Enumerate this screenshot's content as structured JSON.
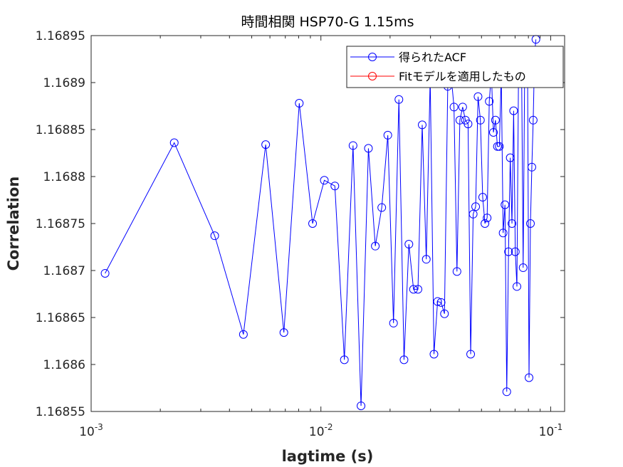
{
  "chart_data": {
    "type": "line",
    "title": "時間相関 HSP70-G 1.15ms",
    "xlabel": "lagtime (s)",
    "ylabel": "Correlation",
    "xscale": "log",
    "xlim": [
      0.001,
      0.115
    ],
    "ylim": [
      1.16855,
      1.16895
    ],
    "xticks": [
      0.001,
      0.01,
      0.1
    ],
    "xtick_labels": [
      {
        "base": "10",
        "exp": "-3"
      },
      {
        "base": "10",
        "exp": "-2"
      },
      {
        "base": "10",
        "exp": "-1"
      }
    ],
    "yticks": [
      1.16855,
      1.1686,
      1.16865,
      1.1687,
      1.16875,
      1.1688,
      1.16885,
      1.1689,
      1.16895
    ],
    "ytick_labels": [
      "1.16855",
      "1.1686",
      "1.16865",
      "1.1687",
      "1.16875",
      "1.1688",
      "1.16885",
      "1.1689",
      "1.16895"
    ],
    "grid": false,
    "legend_position": "top-right",
    "series": [
      {
        "name": "得られたACF",
        "color": "#0000ff",
        "marker": "circle",
        "x": [
          0.00115,
          0.0023,
          0.00345,
          0.0046,
          0.00575,
          0.0069,
          0.00805,
          0.0092,
          0.01035,
          0.0115,
          0.01265,
          0.0138,
          0.01495,
          0.0161,
          0.01725,
          0.0184,
          0.01955,
          0.0207,
          0.02185,
          0.023,
          0.02415,
          0.0253,
          0.02645,
          0.0276,
          0.02875,
          0.0299,
          0.03105,
          0.0322,
          0.03335,
          0.0345,
          0.03565,
          0.0368,
          0.03795,
          0.0391,
          0.04025,
          0.0414,
          0.04255,
          0.0437,
          0.04485,
          0.046,
          0.04715,
          0.0483,
          0.04945,
          0.0506,
          0.05175,
          0.0529,
          0.05405,
          0.0552,
          0.05635,
          0.0575,
          0.05865,
          0.0598,
          0.06095,
          0.0621,
          0.06325,
          0.0644,
          0.06555,
          0.0667,
          0.06785,
          0.069,
          0.07015,
          0.0713,
          0.07245,
          0.0736,
          0.07475,
          0.0759,
          0.07705,
          0.0782,
          0.07935,
          0.0805,
          0.08165,
          0.0828,
          0.08395,
          0.0851,
          0.08625,
          0.0874,
          0.08855,
          0.0897,
          0.09085,
          0.092,
          0.09315,
          0.0943,
          0.09545,
          0.0966,
          0.09775,
          0.0989,
          0.10005,
          0.1012,
          0.10235,
          0.1035,
          0.10465,
          0.1058,
          0.10695,
          0.1081,
          0.10925,
          0.1104,
          0.11155,
          0.1127,
          0.11385,
          0.115
        ],
        "y": [
          1.168697,
          1.168836,
          1.168737,
          1.168632,
          1.168834,
          1.168634,
          1.168878,
          1.16875,
          1.168796,
          1.16879,
          1.168605,
          1.168833,
          1.168556,
          1.16883,
          1.168726,
          1.168767,
          1.168844,
          1.168644,
          1.168882,
          1.168605,
          1.168728,
          1.16868,
          1.16868,
          1.168855,
          1.168712,
          1.168905,
          1.168611,
          1.168667,
          1.168666,
          1.168654,
          1.168896,
          1.16891,
          1.168874,
          1.168699,
          1.16886,
          1.168874,
          1.16886,
          1.168856,
          1.168611,
          1.16876,
          1.168768,
          1.168885,
          1.16886,
          1.168778,
          1.16875,
          1.168756,
          1.16888,
          1.16891,
          1.168847,
          1.16886,
          1.168832,
          1.168832,
          1.16891,
          1.16874,
          1.16877,
          1.168571,
          1.16872,
          1.16882,
          1.16875,
          1.16887,
          1.16872,
          1.168683,
          1.16891,
          1.16895,
          1.16891,
          1.168703,
          1.16891,
          1.16893,
          1.16891,
          1.168586,
          1.16875,
          1.16881,
          1.16886,
          1.16893,
          1.168946,
          1.16895,
          1.16895,
          1.16895,
          1.16895,
          1.16895,
          1.16895,
          1.16895,
          1.16895,
          1.16895,
          1.16895,
          1.16895,
          1.16895,
          1.16895,
          1.16895,
          1.16895,
          1.16895,
          1.16895,
          1.16895,
          1.16895,
          1.16895,
          1.16895,
          1.16895,
          1.16895,
          1.16895,
          1.16895
        ]
      },
      {
        "name": "Fitモデルを適用したもの",
        "color": "#ff0000",
        "marker": "circle",
        "x": [],
        "y": []
      }
    ]
  }
}
